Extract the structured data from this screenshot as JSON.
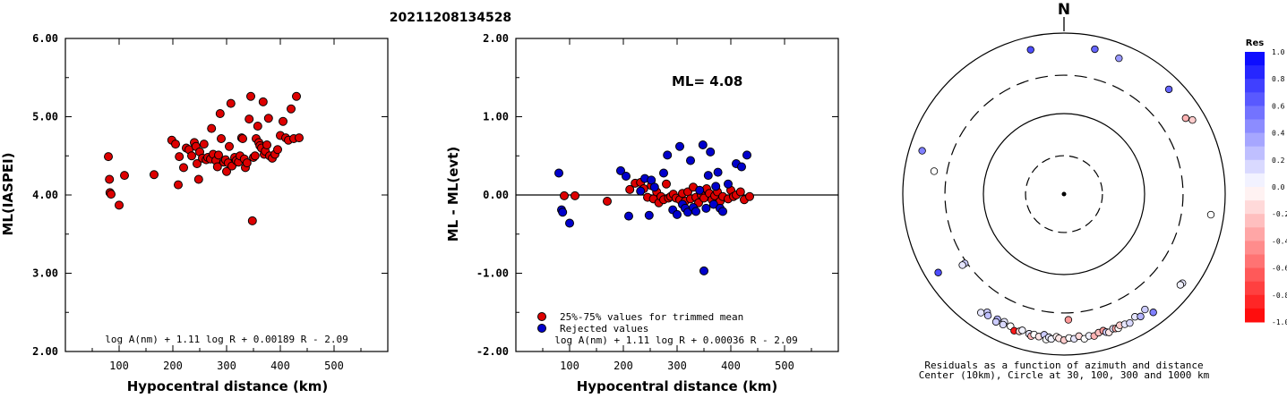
{
  "header": {
    "event_id": "20211208134528"
  },
  "colors": {
    "trimmed": "#dd0000",
    "rejected": "#0000cc",
    "axis": "#000000"
  },
  "chart_data": [
    {
      "id": "ml",
      "type": "scatter",
      "xlabel": "Hypocentral distance (km)",
      "ylabel": "ML(IASPEI)",
      "xlim": [
        0,
        600
      ],
      "ylim": [
        2.0,
        6.0
      ],
      "xticks": [
        "100",
        "200",
        "300",
        "400",
        "500"
      ],
      "yticks": [
        "2.00",
        "3.00",
        "4.00",
        "5.00",
        "6.00"
      ],
      "formula": "log A(nm) + 1.11 log R + 0.00189 R - 2.09",
      "series": [
        {
          "color": "red",
          "points": [
            [
              80,
              4.49
            ],
            [
              82,
              4.2
            ],
            [
              83,
              4.03
            ],
            [
              85,
              4.01
            ],
            [
              100,
              3.87
            ],
            [
              110,
              4.25
            ],
            [
              165,
              4.26
            ],
            [
              198,
              4.7
            ],
            [
              205,
              4.65
            ],
            [
              210,
              4.13
            ],
            [
              212,
              4.49
            ],
            [
              220,
              4.35
            ],
            [
              225,
              4.6
            ],
            [
              230,
              4.58
            ],
            [
              235,
              4.5
            ],
            [
              240,
              4.67
            ],
            [
              243,
              4.62
            ],
            [
              245,
              4.4
            ],
            [
              248,
              4.2
            ],
            [
              250,
              4.55
            ],
            [
              255,
              4.47
            ],
            [
              258,
              4.65
            ],
            [
              262,
              4.45
            ],
            [
              265,
              4.48
            ],
            [
              270,
              4.46
            ],
            [
              272,
              4.85
            ],
            [
              275,
              4.52
            ],
            [
              280,
              4.44
            ],
            [
              283,
              4.36
            ],
            [
              285,
              4.51
            ],
            [
              288,
              5.04
            ],
            [
              290,
              4.72
            ],
            [
              295,
              4.42
            ],
            [
              298,
              4.45
            ],
            [
              300,
              4.3
            ],
            [
              303,
              4.41
            ],
            [
              305,
              4.62
            ],
            [
              308,
              5.17
            ],
            [
              310,
              4.37
            ],
            [
              315,
              4.48
            ],
            [
              318,
              4.44
            ],
            [
              322,
              4.42
            ],
            [
              325,
              4.5
            ],
            [
              328,
              4.73
            ],
            [
              330,
              4.72
            ],
            [
              333,
              4.46
            ],
            [
              335,
              4.35
            ],
            [
              338,
              4.41
            ],
            [
              342,
              4.97
            ],
            [
              345,
              5.26
            ],
            [
              348,
              3.67
            ],
            [
              350,
              4.48
            ],
            [
              353,
              4.5
            ],
            [
              355,
              4.72
            ],
            [
              358,
              4.88
            ],
            [
              360,
              4.67
            ],
            [
              362,
              4.63
            ],
            [
              365,
              4.6
            ],
            [
              368,
              5.19
            ],
            [
              370,
              4.52
            ],
            [
              372,
              4.56
            ],
            [
              375,
              4.64
            ],
            [
              378,
              4.98
            ],
            [
              380,
              4.5
            ],
            [
              385,
              4.47
            ],
            [
              390,
              4.52
            ],
            [
              395,
              4.58
            ],
            [
              400,
              4.76
            ],
            [
              405,
              4.94
            ],
            [
              410,
              4.73
            ],
            [
              415,
              4.7
            ],
            [
              420,
              5.1
            ],
            [
              425,
              4.72
            ],
            [
              430,
              5.26
            ],
            [
              435,
              4.73
            ]
          ]
        }
      ]
    },
    {
      "id": "res",
      "type": "scatter",
      "xlabel": "Hypocentral distance (km)",
      "ylabel": "ML - ML(evt)",
      "xlim": [
        0,
        600
      ],
      "ylim": [
        -2.0,
        2.0
      ],
      "xticks": [
        "100",
        "200",
        "300",
        "400",
        "500"
      ],
      "yticks": [
        "-2.00",
        "-1.00",
        "0.00",
        "1.00",
        "2.00"
      ],
      "annotation": "ML= 4.08",
      "reference_line": 0,
      "legend": {
        "position": "bottom-left",
        "items": [
          {
            "label": "25%-75% values for trimmed mean",
            "color": "red"
          },
          {
            "label": "Rejected values",
            "color": "blue"
          }
        ]
      },
      "formula": "log A(nm) + 1.11 log R + 0.00036 R - 2.09",
      "series": [
        {
          "color": "red",
          "points": [
            [
              90,
              -0.01
            ],
            [
              110,
              -0.01
            ],
            [
              170,
              -0.08
            ],
            [
              212,
              0.07
            ],
            [
              222,
              0.15
            ],
            [
              232,
              0.16
            ],
            [
              238,
              0.08
            ],
            [
              245,
              -0.03
            ],
            [
              252,
              0.12
            ],
            [
              256,
              -0.05
            ],
            [
              262,
              0.04
            ],
            [
              266,
              -0.1
            ],
            [
              270,
              -0.02
            ],
            [
              275,
              -0.06
            ],
            [
              280,
              0.14
            ],
            [
              284,
              -0.04
            ],
            [
              288,
              -0.02
            ],
            [
              293,
              0.01
            ],
            [
              298,
              -0.04
            ],
            [
              305,
              -0.06
            ],
            [
              310,
              0.02
            ],
            [
              315,
              -0.08
            ],
            [
              320,
              0.04
            ],
            [
              325,
              -0.05
            ],
            [
              330,
              0.1
            ],
            [
              335,
              -0.03
            ],
            [
              340,
              -0.1
            ],
            [
              345,
              0.0
            ],
            [
              350,
              -0.04
            ],
            [
              355,
              0.08
            ],
            [
              360,
              0.02
            ],
            [
              365,
              -0.06
            ],
            [
              370,
              -0.01
            ],
            [
              375,
              0.04
            ],
            [
              380,
              -0.08
            ],
            [
              385,
              -0.02
            ],
            [
              395,
              -0.05
            ],
            [
              400,
              0.06
            ],
            [
              405,
              -0.02
            ],
            [
              410,
              0.0
            ],
            [
              418,
              0.04
            ],
            [
              425,
              -0.06
            ],
            [
              435,
              -0.02
            ]
          ]
        },
        {
          "color": "blue",
          "points": [
            [
              80,
              0.28
            ],
            [
              85,
              -0.19
            ],
            [
              87,
              -0.22
            ],
            [
              100,
              -0.36
            ],
            [
              195,
              0.31
            ],
            [
              205,
              0.24
            ],
            [
              210,
              -0.27
            ],
            [
              232,
              0.05
            ],
            [
              240,
              0.21
            ],
            [
              248,
              -0.26
            ],
            [
              252,
              0.19
            ],
            [
              258,
              0.1
            ],
            [
              275,
              0.28
            ],
            [
              282,
              0.51
            ],
            [
              292,
              -0.19
            ],
            [
              300,
              -0.25
            ],
            [
              305,
              0.62
            ],
            [
              310,
              -0.12
            ],
            [
              315,
              -0.17
            ],
            [
              320,
              -0.22
            ],
            [
              325,
              0.44
            ],
            [
              330,
              -0.16
            ],
            [
              335,
              -0.21
            ],
            [
              342,
              0.06
            ],
            [
              348,
              0.64
            ],
            [
              350,
              -0.97
            ],
            [
              354,
              -0.17
            ],
            [
              358,
              0.25
            ],
            [
              362,
              0.55
            ],
            [
              368,
              -0.12
            ],
            [
              372,
              0.11
            ],
            [
              376,
              0.29
            ],
            [
              380,
              -0.17
            ],
            [
              385,
              -0.21
            ],
            [
              395,
              0.14
            ],
            [
              410,
              0.4
            ],
            [
              420,
              0.36
            ],
            [
              430,
              0.51
            ]
          ]
        }
      ]
    }
  ],
  "polar": {
    "north_label": "N",
    "caption_line1": "Residuals as a function of azimuth and distance",
    "caption_line2": "Center (10km), Circle at 30, 100, 300 and 1000 km",
    "stations": [
      {
        "az": -13,
        "dist": 1000,
        "res": 0.7
      },
      {
        "az": 12,
        "dist": 1050,
        "res": 0.6
      },
      {
        "az": 22,
        "dist": 950,
        "res": 0.4
      },
      {
        "az": 45,
        "dist": 1000,
        "res": 0.6
      },
      {
        "az": 58,
        "dist": 860,
        "res": -0.3
      },
      {
        "az": 60,
        "dist": 1000,
        "res": -0.2
      },
      {
        "az": 98,
        "dist": 1000,
        "res": 0.0
      },
      {
        "az": 127,
        "dist": 1000,
        "res": 0.1
      },
      {
        "az": 128,
        "dist": 980,
        "res": 0.05
      },
      {
        "az": -73,
        "dist": 1000,
        "res": 0.5
      },
      {
        "az": -80,
        "dist": 600,
        "res": 0.0
      },
      {
        "az": -125,
        "dist": 430,
        "res": 0.2
      },
      {
        "az": -125,
        "dist": 470,
        "res": 0.1
      },
      {
        "az": -122,
        "dist": 1000,
        "res": 0.7
      },
      {
        "az": 178,
        "dist": 500,
        "res": -0.4
      },
      {
        "az": -147,
        "dist": 800,
        "res": 0.2
      },
      {
        "az": -148,
        "dist": 860,
        "res": 0.25
      },
      {
        "az": -145,
        "dist": 900,
        "res": 0.1
      },
      {
        "az": -152,
        "dist": 820,
        "res": 0.3
      },
      {
        "az": -152,
        "dist": 900,
        "res": 0.2
      },
      {
        "az": -155,
        "dist": 800,
        "res": 0.1
      },
      {
        "az": -155,
        "dist": 880,
        "res": 0.15
      },
      {
        "az": -158,
        "dist": 840,
        "res": 0.0
      },
      {
        "az": -160,
        "dist": 920,
        "res": -0.9
      },
      {
        "az": -162,
        "dist": 890,
        "res": -0.2
      },
      {
        "az": -163,
        "dist": 840,
        "res": 0.05
      },
      {
        "az": -166,
        "dist": 880,
        "res": 0.1
      },
      {
        "az": -167,
        "dist": 930,
        "res": -0.3
      },
      {
        "az": -168,
        "dist": 870,
        "res": 0.0
      },
      {
        "az": -170,
        "dist": 900,
        "res": -0.1
      },
      {
        "az": -172,
        "dist": 830,
        "res": 0.2
      },
      {
        "az": -173,
        "dist": 950,
        "res": 0.0
      },
      {
        "az": -174,
        "dist": 880,
        "res": 0.1
      },
      {
        "az": -175,
        "dist": 920,
        "res": 0.05
      },
      {
        "az": -177,
        "dist": 850,
        "res": -0.05
      },
      {
        "az": -178,
        "dist": 890,
        "res": -0.1
      },
      {
        "az": -180,
        "dist": 940,
        "res": -0.2
      },
      {
        "az": 178,
        "dist": 880,
        "res": 0.0
      },
      {
        "az": 176,
        "dist": 910,
        "res": 0.1
      },
      {
        "az": 174,
        "dist": 850,
        "res": -0.15
      },
      {
        "az": 172,
        "dist": 940,
        "res": 0.0
      },
      {
        "az": 170,
        "dist": 880,
        "res": 0.05
      },
      {
        "az": 168,
        "dist": 910,
        "res": -0.3
      },
      {
        "az": 166,
        "dist": 850,
        "res": -0.25
      },
      {
        "az": 164,
        "dist": 830,
        "res": -0.4
      },
      {
        "az": 163,
        "dist": 890,
        "res": 0.2
      },
      {
        "az": 162,
        "dist": 920,
        "res": -0.1
      },
      {
        "az": 160,
        "dist": 860,
        "res": 0.1
      },
      {
        "az": 159,
        "dist": 880,
        "res": -0.35
      },
      {
        "az": 158,
        "dist": 900,
        "res": 0.0
      },
      {
        "az": 157,
        "dist": 840,
        "res": -0.2
      },
      {
        "az": 155,
        "dist": 870,
        "res": 0.1
      },
      {
        "az": 153,
        "dist": 900,
        "res": 0.15
      },
      {
        "az": 150,
        "dist": 820,
        "res": 0.1
      },
      {
        "az": 148,
        "dist": 890,
        "res": 0.3
      },
      {
        "az": 145,
        "dist": 800,
        "res": 0.2
      },
      {
        "az": 143,
        "dist": 1000,
        "res": 0.5
      }
    ]
  },
  "colorbar": {
    "title": "Res",
    "ticks": [
      "1.0",
      "0.8",
      "0.6",
      "0.4",
      "0.2",
      "0.0",
      "-0.2",
      "-0.4",
      "-0.6",
      "-0.8",
      "-1.0"
    ],
    "max_color": "#0000ff",
    "min_color": "#ff0000"
  }
}
